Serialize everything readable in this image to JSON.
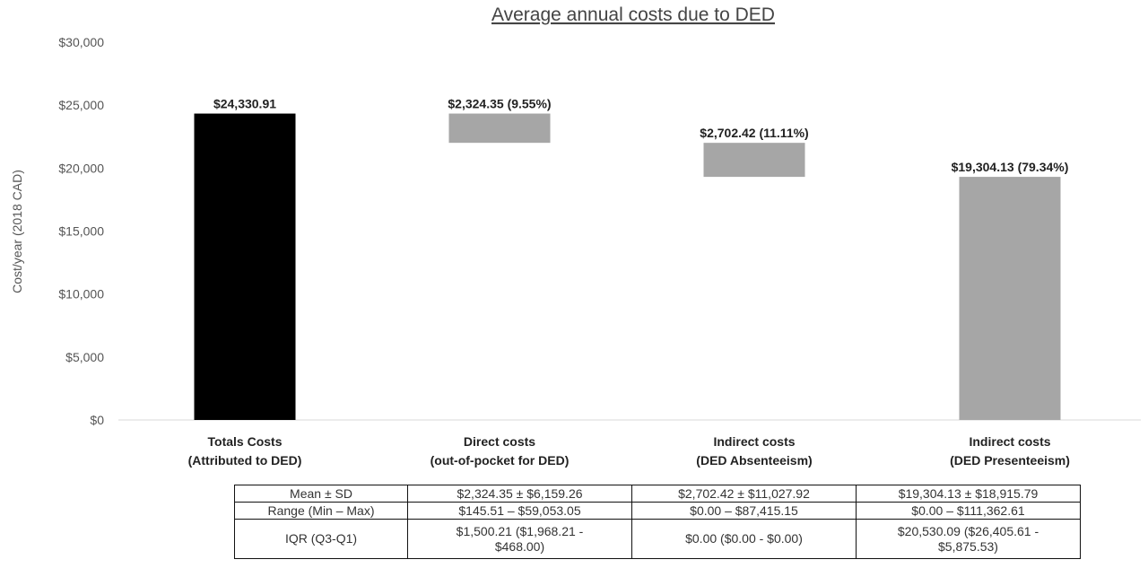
{
  "chart_data": {
    "type": "bar",
    "title": "Average annual costs due to DED",
    "ylabel": "Cost/year (2018 CAD)",
    "ylim": [
      0,
      30000
    ],
    "yticks": [
      0,
      5000,
      10000,
      15000,
      20000,
      25000,
      30000
    ],
    "ytick_labels": [
      "$0",
      "$5,000",
      "$10,000",
      "$15,000",
      "$20,000",
      "$25,000",
      "$30,000"
    ],
    "grid": false,
    "categories": [
      [
        "Totals Costs",
        "(Attributed to DED)"
      ],
      [
        "Direct costs",
        "(out-of-pocket for DED)"
      ],
      [
        "Indirect costs",
        "(DED Absenteeism)"
      ],
      [
        "Indirect costs",
        "(DED Presenteeism)"
      ]
    ],
    "bars": [
      {
        "base": 0,
        "value": 24330.91,
        "label": "$24,330.91",
        "color": "#000000"
      },
      {
        "base": 22006.56,
        "value": 2324.35,
        "label": "$2,324.35 (9.55%)",
        "color": "#a6a6a6"
      },
      {
        "base": 19304.14,
        "value": 2702.42,
        "label": "$2,702.42 (11.11%)",
        "color": "#a6a6a6"
      },
      {
        "base": 0,
        "value": 19304.13,
        "label": "$19,304.13 (79.34%)",
        "color": "#a6a6a6"
      }
    ]
  },
  "table": {
    "rows": [
      {
        "label": "Mean ± SD",
        "cells": [
          "$2,324.35 ± $6,159.26",
          "$2,702.42 ± $11,027.92",
          "$19,304.13 ± $18,915.79"
        ]
      },
      {
        "label": "Range (Min – Max)",
        "cells": [
          "$145.51 – $59,053.05",
          "$0.00 – $87,415.15",
          "$0.00 – $111,362.61"
        ]
      },
      {
        "label": "IQR (Q3-Q1)",
        "cells": [
          [
            "$1,500.21 ($1,968.21 -",
            "$468.00)"
          ],
          "$0.00 ($0.00 - $0.00)",
          [
            "$20,530.09 ($26,405.61 -",
            "$5,875.53)"
          ]
        ]
      }
    ]
  }
}
